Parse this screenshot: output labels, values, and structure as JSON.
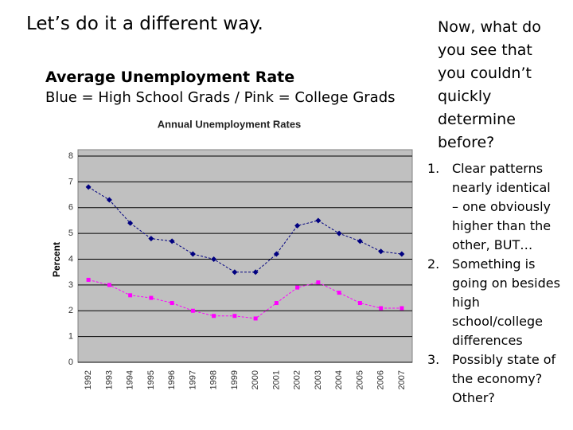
{
  "slide": {
    "title": "Let’s do it a different way.",
    "chart_heading": "Average Unemployment Rate",
    "chart_subheading": "Blue = High School Grads / Pink = College Grads",
    "question_lines": [
      "Now, what do",
      "you see that",
      "you couldn’t",
      "quickly",
      "determine",
      "before?"
    ],
    "points": [
      [
        "Clear patterns",
        "nearly identical",
        "– one obviously",
        "higher than the",
        "other, BUT…"
      ],
      [
        "Something is",
        "going on besides",
        "high",
        "school/college",
        "differences"
      ],
      [
        "Possibly state of",
        "the economy?",
        "Other?"
      ]
    ]
  },
  "chart_data": {
    "type": "line",
    "title": "Annual Unemployment Rates",
    "y_label": "Percent",
    "categories": [
      "1992",
      "1993",
      "1994",
      "1995",
      "1996",
      "1997",
      "1998",
      "1999",
      "2000",
      "2001",
      "2002",
      "2003",
      "2004",
      "2005",
      "2006",
      "2007"
    ],
    "series": [
      {
        "color": "#000080",
        "marker": "diamond",
        "values": [
          6.8,
          6.3,
          5.4,
          4.8,
          4.7,
          4.2,
          4.0,
          3.5,
          3.5,
          4.2,
          5.3,
          5.5,
          5.0,
          4.7,
          4.3,
          4.2
        ]
      },
      {
        "color": "#ff00ff",
        "marker": "square",
        "values": [
          3.2,
          3.0,
          2.6,
          2.5,
          2.3,
          2.0,
          1.8,
          1.8,
          1.7,
          2.3,
          2.9,
          3.1,
          2.7,
          2.3,
          2.1,
          2.1
        ]
      }
    ],
    "ylim": [
      0,
      8
    ],
    "yticks": [
      0,
      1,
      2,
      3,
      4,
      5,
      6,
      7,
      8
    ],
    "grid": true
  }
}
